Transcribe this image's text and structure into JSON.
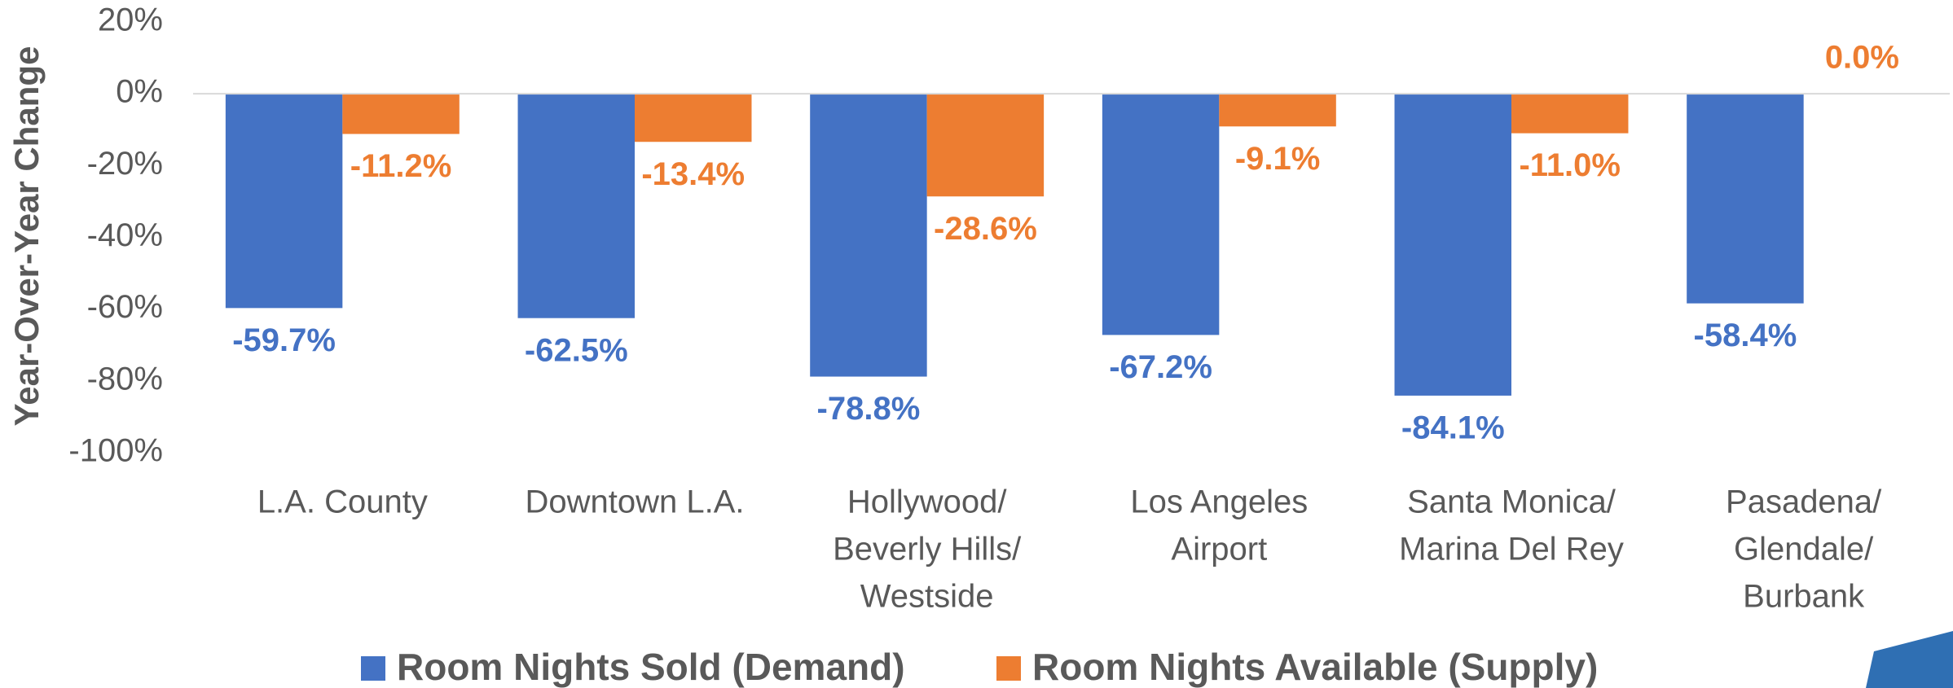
{
  "chart_data": {
    "type": "bar",
    "y_label": "Year-Over-Year Change",
    "categories": [
      [
        "L.A. County"
      ],
      [
        "Downtown L.A."
      ],
      [
        "Hollywood/",
        "Beverly Hills/",
        "Westside"
      ],
      [
        "Los Angeles",
        "Airport"
      ],
      [
        "Santa Monica/",
        "Marina Del Rey"
      ],
      [
        "Pasadena/",
        "Glendale/",
        "Burbank"
      ]
    ],
    "series": [
      {
        "name": "Room Nights Sold (Demand)",
        "color": "#4472c4",
        "values": [
          -59.7,
          -62.5,
          -78.8,
          -67.2,
          -84.1,
          -58.4
        ],
        "value_labels": [
          "-59.7%",
          "-62.5%",
          "-78.8%",
          "-67.2%",
          "-84.1%",
          "-58.4%"
        ]
      },
      {
        "name": "Room Nights Available (Supply)",
        "color": "#ed7d31",
        "values": [
          -11.2,
          -13.4,
          -28.6,
          -9.1,
          -11.0,
          0.0
        ],
        "value_labels": [
          "-11.2%",
          "-13.4%",
          "-28.6%",
          "-9.1%",
          "-11.0%",
          "0.0%"
        ]
      }
    ],
    "ylim": [
      -100,
      20
    ],
    "yticks": [
      {
        "value": 20,
        "label": "20%"
      },
      {
        "value": 0,
        "label": "0%"
      },
      {
        "value": -20,
        "label": "-20%"
      },
      {
        "value": -40,
        "label": "-40%"
      },
      {
        "value": -60,
        "label": "-60%"
      },
      {
        "value": -80,
        "label": "-80%"
      },
      {
        "value": -100,
        "label": "-100%"
      }
    ],
    "grid": false,
    "legend": "bottom"
  }
}
